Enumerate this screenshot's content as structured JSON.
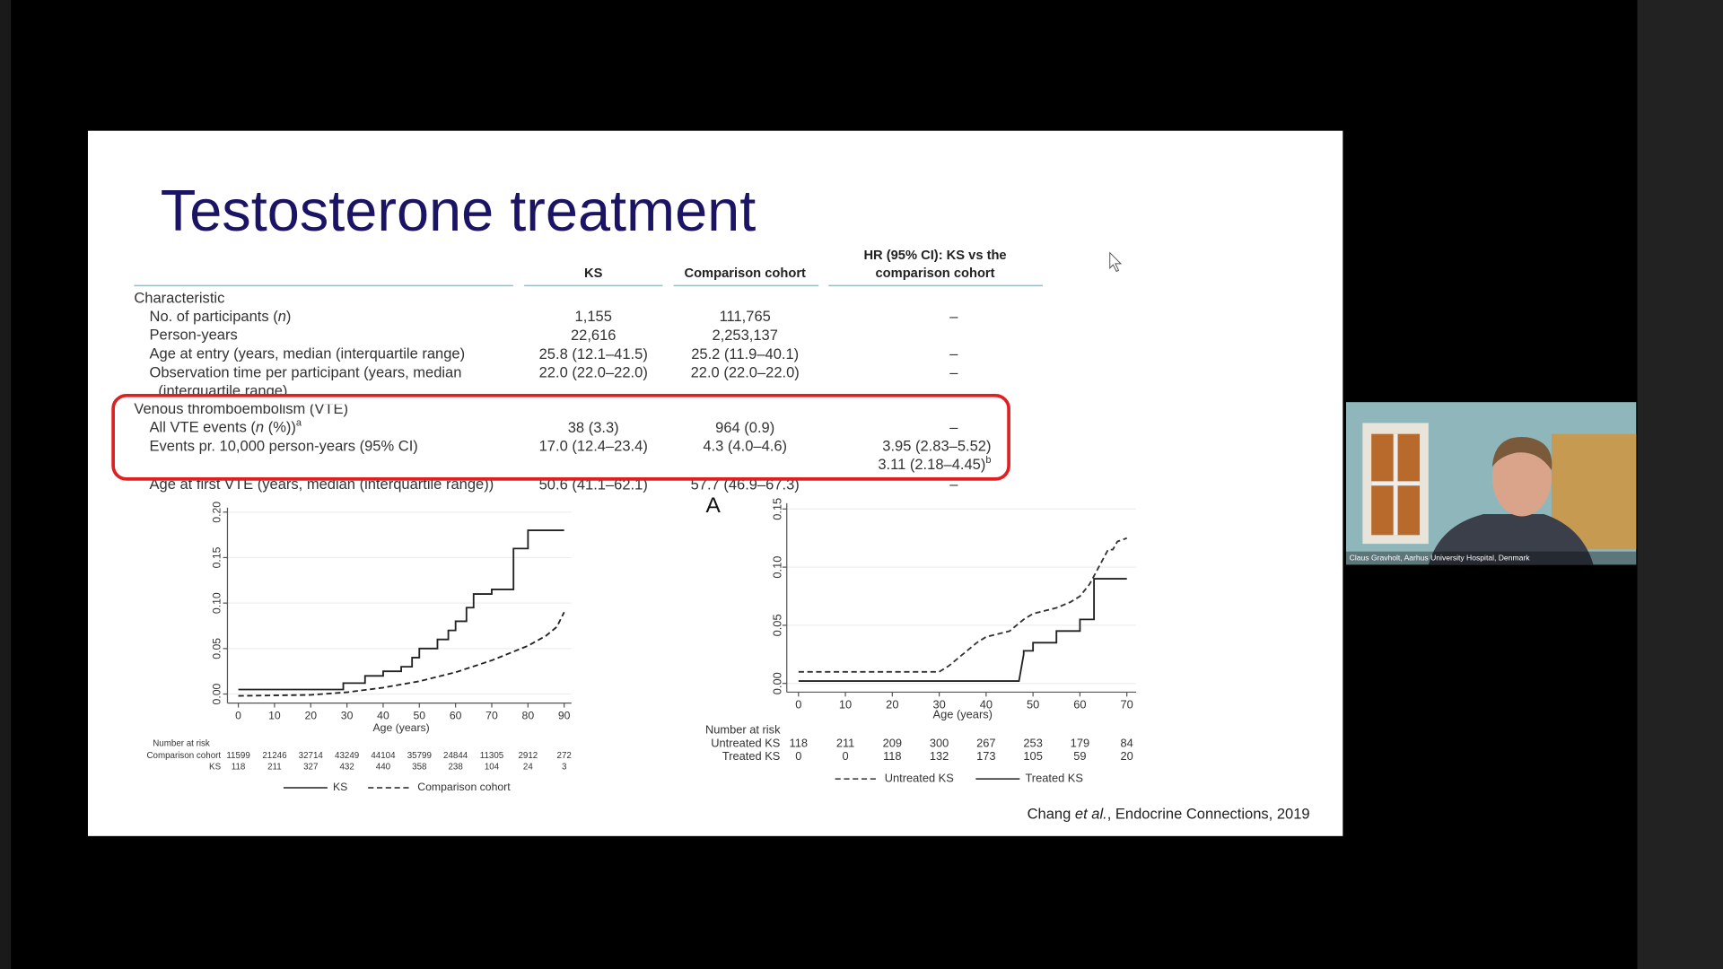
{
  "slide": {
    "title": "Testosterone treatment",
    "table": {
      "headers": {
        "ks": "KS",
        "cc": "Comparison cohort",
        "hr": [
          "HR (95% CI): KS vs the",
          "comparison cohort"
        ]
      },
      "rows": [
        {
          "section": "Characteristic"
        },
        {
          "label": [
            [
              "No. of participants (",
              "n",
              ")"
            ]
          ],
          "ks": "1,155",
          "cc": "111,765",
          "hr": [
            "–"
          ]
        },
        {
          "label": [
            [
              "Person-years"
            ]
          ],
          "ks": "22,616",
          "cc": "2,253,137"
        },
        {
          "label": [
            [
              "Age at entry (years, median (interquartile range)"
            ]
          ],
          "ks": "25.8 (12.1–41.5)",
          "cc": "25.2 (11.9–40.1)",
          "hr": [
            "–"
          ]
        },
        {
          "label": [
            [
              "Observation time per participant (years, median"
            ],
            [
              "(interquartile range)"
            ]
          ],
          "ks": "22.0 (22.0–22.0)",
          "cc": "22.0 (22.0–22.0)",
          "hr": [
            "–"
          ]
        },
        {
          "section": "Venous thromboembolism (VTE)"
        },
        {
          "label": [
            [
              "All VTE events (",
              "n",
              " (%))"
            ]
          ],
          "label_sup": "a",
          "ks": "38 (3.3)",
          "cc": "964 (0.9)",
          "hr": [
            "–"
          ]
        },
        {
          "label": [
            [
              "Events pr. 10,000 person-years (95% CI)"
            ]
          ],
          "ks": "17.0 (12.4–23.4)",
          "cc": "4.3 (4.0–4.6)",
          "hr": [
            "3.95 (2.83–5.52)",
            "3.11 (2.18–4.45)"
          ],
          "hr_sup": "b"
        },
        {
          "label": [
            [
              "Age at first VTE (years, median (interquartile range))"
            ]
          ],
          "ks": "50.6 (41.1–62.1)",
          "cc": "57.7 (46.9–67.3)",
          "hr": [
            "–"
          ]
        }
      ]
    },
    "citation": [
      "Chang ",
      "et al.",
      ", Endocrine Connections, 2019"
    ]
  },
  "chart_data": [
    {
      "type": "line",
      "x_label": "Age (years)",
      "xlim": [
        -3,
        92
      ],
      "ylim": [
        -0.01,
        0.205
      ],
      "xticks": [
        0,
        10,
        20,
        30,
        40,
        50,
        60,
        70,
        80,
        90
      ],
      "yticks": [
        {
          "value": 0,
          "label": "0.00"
        },
        {
          "value": 0.05,
          "label": "0.05"
        },
        {
          "value": 0.1,
          "label": "0.10"
        },
        {
          "value": 0.15,
          "label": "0.15"
        },
        {
          "value": 0.2,
          "label": "0.20"
        }
      ],
      "grid": true,
      "series": [
        {
          "name": "KS",
          "color": "#222222",
          "dash": false,
          "x": [
            0,
            29,
            29,
            35,
            35,
            40,
            40,
            45,
            45,
            48,
            48,
            50,
            50,
            55,
            55,
            58,
            58,
            60,
            60,
            63,
            63,
            65,
            65,
            70,
            70,
            76,
            76,
            80,
            80,
            90
          ],
          "values": [
            0.005,
            0.005,
            0.012,
            0.012,
            0.02,
            0.02,
            0.025,
            0.025,
            0.03,
            0.03,
            0.04,
            0.04,
            0.05,
            0.05,
            0.06,
            0.06,
            0.07,
            0.07,
            0.08,
            0.08,
            0.095,
            0.095,
            0.11,
            0.11,
            0.115,
            0.115,
            0.16,
            0.16,
            0.18,
            0.18
          ]
        },
        {
          "name": "Comparison cohort",
          "color": "#222222",
          "dash": true,
          "x": [
            0,
            20,
            30,
            40,
            50,
            60,
            70,
            80,
            85,
            88,
            90
          ],
          "values": [
            -0.002,
            -0.001,
            0.002,
            0.007,
            0.014,
            0.024,
            0.037,
            0.053,
            0.064,
            0.074,
            0.09
          ]
        }
      ],
      "risk_table": {
        "title": "Number at risk",
        "rows": [
          {
            "name": "Comparison cohort",
            "values": [
              11599,
              21246,
              32714,
              43249,
              44104,
              35799,
              24844,
              11305,
              2912,
              272
            ]
          },
          {
            "name": "KS",
            "values": [
              118,
              211,
              327,
              432,
              440,
              358,
              238,
              104,
              24,
              3
            ]
          }
        ]
      }
    },
    {
      "type": "line",
      "panel_label": "A",
      "x_label": "Age (years)",
      "xlim": [
        -2.5,
        72
      ],
      "ylim": [
        -0.0075,
        0.155
      ],
      "xticks": [
        0,
        10,
        20,
        30,
        40,
        50,
        60,
        70
      ],
      "yticks": [
        {
          "value": 0,
          "label": "0.00"
        },
        {
          "value": 0.05,
          "label": "0.05"
        },
        {
          "value": 0.1,
          "label": "0.10"
        },
        {
          "value": 0.15,
          "label": "0.15"
        }
      ],
      "grid": true,
      "series": [
        {
          "name": "Untreated KS",
          "color": "#333333",
          "dash": true,
          "x": [
            0,
            30,
            32,
            35,
            38,
            40,
            45,
            48,
            50,
            55,
            58,
            60,
            62,
            64,
            66,
            67,
            68,
            70
          ],
          "values": [
            0.01,
            0.01,
            0.015,
            0.025,
            0.035,
            0.04,
            0.045,
            0.055,
            0.06,
            0.065,
            0.07,
            0.075,
            0.085,
            0.1,
            0.115,
            0.115,
            0.122,
            0.125
          ]
        },
        {
          "name": "Treated KS",
          "color": "#222222",
          "dash": false,
          "x": [
            0,
            47,
            48,
            48,
            50,
            50,
            55,
            55,
            60,
            60,
            63,
            63,
            70
          ],
          "values": [
            0.002,
            0.002,
            0.025,
            0.028,
            0.028,
            0.035,
            0.035,
            0.045,
            0.045,
            0.055,
            0.055,
            0.09,
            0.09
          ]
        }
      ],
      "risk_table": {
        "title": "Number at risk",
        "rows": [
          {
            "name": "Untreated KS",
            "values": [
              118,
              211,
              209,
              300,
              267,
              253,
              179,
              84
            ]
          },
          {
            "name": "Treated KS",
            "values": [
              0,
              0,
              118,
              132,
              173,
              105,
              59,
              20
            ]
          }
        ]
      }
    }
  ],
  "video": {
    "caption": "Claus Gravholt, Aarhus University Hospital, Denmark"
  }
}
